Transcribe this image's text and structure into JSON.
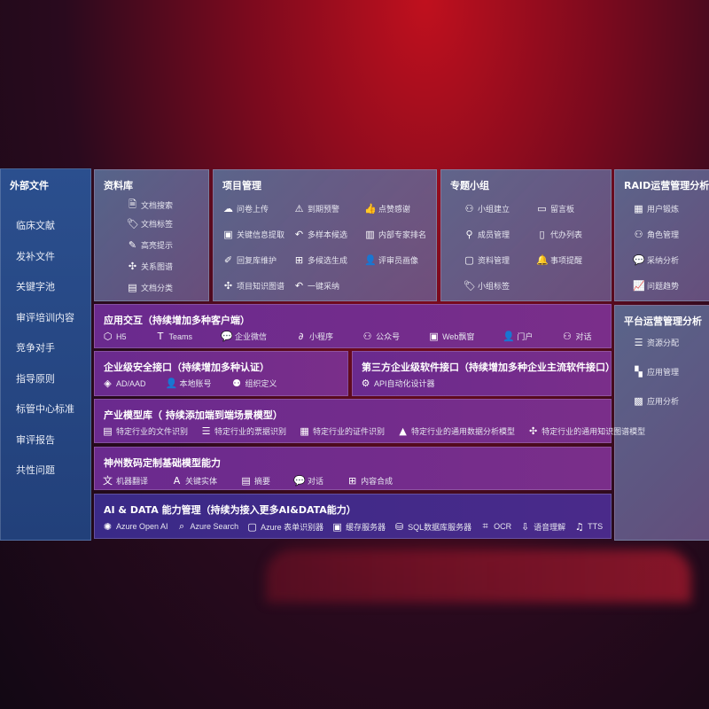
{
  "sidebar": {
    "title": "外部文件",
    "items": [
      "临床文献",
      "发补文件",
      "关键字池",
      "审评培训内容",
      "竞争对手",
      "指导原则",
      "标管中心标准",
      "审评报告",
      "共性问题"
    ]
  },
  "panels": [
    {
      "id": "ziliaoku",
      "title": "资料库",
      "items": [
        {
          "label": "文档搜索",
          "icon": "document-search-icon"
        },
        {
          "label": "文档标签",
          "icon": "tag-icon"
        },
        {
          "label": "高亮提示",
          "icon": "pen-icon"
        },
        {
          "label": "关系图谱",
          "icon": "graph-icon"
        },
        {
          "label": "文档分类",
          "icon": "document-stack-icon"
        }
      ]
    },
    {
      "id": "xiangmu",
      "title": "项目管理",
      "items": [
        {
          "label": "问卷上传",
          "icon": "cloud-upload-icon"
        },
        {
          "label": "到期预警",
          "icon": "alarm-icon"
        },
        {
          "label": "点赞感谢",
          "icon": "thumbs-up-icon"
        },
        {
          "label": "关键信息提取",
          "icon": "window-icon"
        },
        {
          "label": "多样本候选",
          "icon": "reply-icon"
        },
        {
          "label": "内部专家排名",
          "icon": "ranking-icon"
        },
        {
          "label": "回复库维护",
          "icon": "edit-icon"
        },
        {
          "label": "多候选生成",
          "icon": "puzzle-icon"
        },
        {
          "label": "评审员画像",
          "icon": "user-icon"
        },
        {
          "label": "项目知识图谱",
          "icon": "graph-icon"
        },
        {
          "label": "一键采纳",
          "icon": "reply-icon"
        }
      ]
    },
    {
      "id": "zhuanti",
      "title": "专题小组",
      "items": [
        {
          "label": "小组建立",
          "icon": "group-icon"
        },
        {
          "label": "留言板",
          "icon": "bbs-icon"
        },
        {
          "label": "成员管理",
          "icon": "user-add-icon"
        },
        {
          "label": "代办列表",
          "icon": "clipboard-icon"
        },
        {
          "label": "资料管理",
          "icon": "folder-icon"
        },
        {
          "label": "事项提醒",
          "icon": "bell-icon"
        },
        {
          "label": "小组标签",
          "icon": "tag-icon"
        }
      ]
    },
    {
      "id": "raid",
      "title": "RAID运营管理分析",
      "items": [
        {
          "label": "用户锻炼",
          "icon": "id-card-icon"
        },
        {
          "label": "角色管理",
          "icon": "group-icon"
        },
        {
          "label": "采纳分析",
          "icon": "qa-icon"
        },
        {
          "label": "问题趋势",
          "icon": "trend-icon"
        }
      ]
    },
    {
      "id": "platform",
      "title": "平台运营管理分析",
      "items": [
        {
          "label": "资源分配",
          "icon": "checklist-icon"
        },
        {
          "label": "应用管理",
          "icon": "apps-icon"
        },
        {
          "label": "应用分析",
          "icon": "analysis-icon"
        }
      ]
    },
    {
      "id": "interaction",
      "title": "应用交互（持续增加多种客户端）",
      "items": [
        {
          "label": "H5",
          "icon": "html5-icon"
        },
        {
          "label": "Teams",
          "icon": "teams-icon"
        },
        {
          "label": "企业微信",
          "icon": "wechat-work-icon"
        },
        {
          "label": "小程序",
          "icon": "mini-program-icon"
        },
        {
          "label": "公众号",
          "icon": "official-account-icon"
        },
        {
          "label": "Web飘窗",
          "icon": "window-icon"
        },
        {
          "label": "门户",
          "icon": "portal-icon"
        },
        {
          "label": "对话",
          "icon": "chat-users-icon"
        }
      ]
    },
    {
      "id": "security",
      "title": "企业级安全接口（持续增加多种认证）",
      "items": [
        {
          "label": "AD/AAD",
          "icon": "ad-icon"
        },
        {
          "label": "本地账号",
          "icon": "account-icon"
        },
        {
          "label": "组织定义",
          "icon": "org-icon"
        }
      ]
    },
    {
      "id": "thirdparty",
      "title": "第三方企业级软件接口（持续增加多种企业主流软件接口）",
      "items": [
        {
          "label": "API自动化设计器",
          "icon": "gear-api-icon"
        }
      ]
    },
    {
      "id": "industry",
      "title": "产业模型库（ 持续添加端到端场景模型）",
      "items": [
        {
          "label": "特定行业的文件识别",
          "icon": "file-icon"
        },
        {
          "label": "特定行业的票据识别",
          "icon": "receipt-icon"
        },
        {
          "label": "特定行业的证件识别",
          "icon": "id-card-icon"
        },
        {
          "label": "特定行业的通用数据分析模型",
          "icon": "chart-icon"
        },
        {
          "label": "特定行业的通用知识图谱模型",
          "icon": "graph-icon"
        }
      ]
    },
    {
      "id": "shenzhou",
      "title": "神州数码定制基础模型能力",
      "items": [
        {
          "label": "机器翻译",
          "icon": "translate-icon"
        },
        {
          "label": "关键实体",
          "icon": "entity-icon"
        },
        {
          "label": "摘要",
          "icon": "document-icon"
        },
        {
          "label": "对话",
          "icon": "chat-icon"
        },
        {
          "label": "内容合成",
          "icon": "puzzle-icon"
        }
      ]
    },
    {
      "id": "aidata",
      "title": "AI & DATA 能力管理（持续为接入更多AI&DATA能力）",
      "items": [
        {
          "label": "Azure Open AI",
          "icon": "openai-icon"
        },
        {
          "label": "Azure Search",
          "icon": "search-icon"
        },
        {
          "label": "Azure 表单识别器",
          "icon": "form-icon"
        },
        {
          "label": "缓存服务器",
          "icon": "cache-icon"
        },
        {
          "label": "SQL数据库服务器",
          "icon": "database-icon"
        },
        {
          "label": "OCR",
          "icon": "ocr-icon"
        },
        {
          "label": "语音理解",
          "icon": "speech-icon"
        },
        {
          "label": "TTS",
          "icon": "tts-icon"
        }
      ]
    }
  ]
}
